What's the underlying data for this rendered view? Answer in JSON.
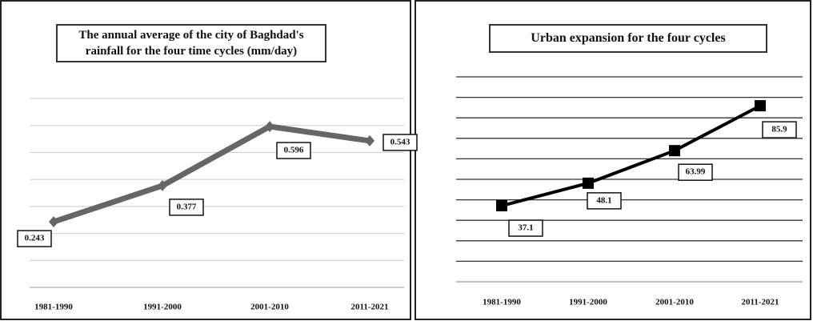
{
  "chart_data": [
    {
      "type": "line",
      "title": "The annual average of the city of Baghdad's rainfall for the four time cycles (mm/day)",
      "categories": [
        "1981-1990",
        "1991-2000",
        "2001-2010",
        "2011-2021"
      ],
      "values": [
        0.243,
        0.377,
        0.596,
        0.543
      ],
      "color": "#666666",
      "marker": "diamond",
      "ylim": [
        0,
        0.7
      ],
      "yticks": [
        0,
        0.1,
        0.2,
        0.3,
        0.4,
        0.5,
        0.6,
        0.7
      ],
      "grid": true
    },
    {
      "type": "line",
      "title": "Urban expansion for the four cycles",
      "categories": [
        "1981-1990",
        "1991-2000",
        "2001-2010",
        "2011-2021"
      ],
      "values": [
        37.1,
        48.1,
        63.99,
        85.9
      ],
      "color": "#000000",
      "marker": "square",
      "ylim": [
        0,
        100
      ],
      "yticks": [
        0,
        10,
        20,
        30,
        40,
        50,
        60,
        70,
        80,
        90,
        100
      ],
      "grid": true
    }
  ]
}
